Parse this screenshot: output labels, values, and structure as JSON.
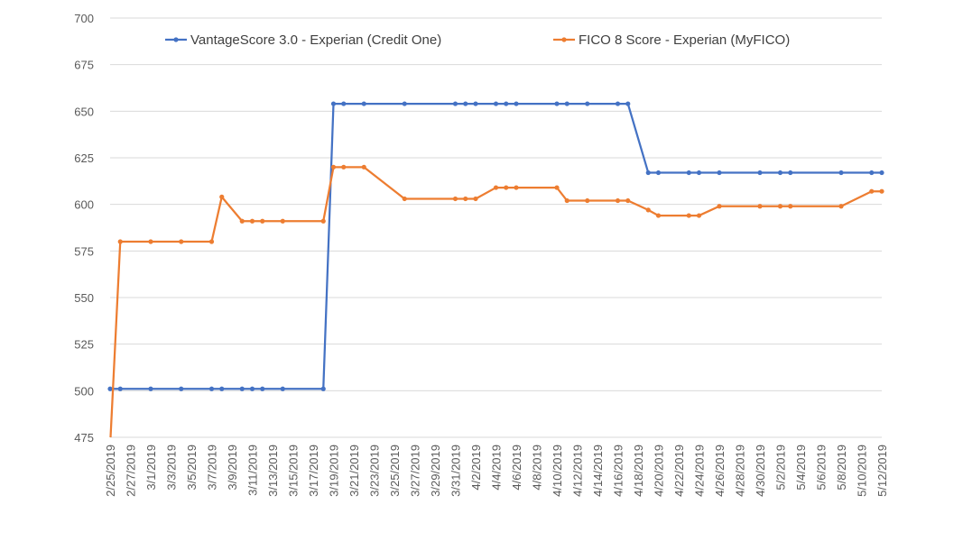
{
  "chart_data": {
    "type": "line",
    "title": "",
    "xlabel": "",
    "ylabel": "",
    "ylim": [
      475,
      700
    ],
    "yticks": [
      475,
      500,
      525,
      550,
      575,
      600,
      625,
      650,
      675,
      700
    ],
    "xlim": [
      "2/25/2019",
      "5/12/2019"
    ],
    "x_tick_interval_days": 2,
    "grid": "horizontal",
    "legend": "top",
    "x": [
      "2/25/2019",
      "2/26/2019",
      "3/1/2019",
      "3/4/2019",
      "3/7/2019",
      "3/8/2019",
      "3/10/2019",
      "3/11/2019",
      "3/12/2019",
      "3/14/2019",
      "3/18/2019",
      "3/19/2019",
      "3/20/2019",
      "3/22/2019",
      "3/26/2019",
      "3/31/2019",
      "4/1/2019",
      "4/2/2019",
      "4/4/2019",
      "4/5/2019",
      "4/6/2019",
      "4/10/2019",
      "4/11/2019",
      "4/13/2019",
      "4/16/2019",
      "4/17/2019",
      "4/19/2019",
      "4/20/2019",
      "4/23/2019",
      "4/24/2019",
      "4/26/2019",
      "4/30/2019",
      "5/2/2019",
      "5/3/2019",
      "5/8/2019",
      "5/11/2019",
      "5/12/2019"
    ],
    "series": [
      {
        "name": "VantageScore 3.0 - Experian (Credit One)",
        "color": "#4472C4",
        "values": [
          501,
          501,
          501,
          501,
          501,
          501,
          501,
          501,
          501,
          501,
          501,
          654,
          654,
          654,
          654,
          654,
          654,
          654,
          654,
          654,
          654,
          654,
          654,
          654,
          654,
          654,
          617,
          617,
          617,
          617,
          617,
          617,
          617,
          617,
          617,
          617,
          617
        ]
      },
      {
        "name": "FICO 8 Score - Experian (MyFICO)",
        "color": "#ED7D31",
        "values": [
          null,
          580,
          580,
          580,
          580,
          604,
          591,
          591,
          591,
          591,
          591,
          620,
          620,
          620,
          603,
          603,
          603,
          603,
          609,
          609,
          609,
          609,
          602,
          602,
          602,
          602,
          597,
          594,
          594,
          594,
          599,
          599,
          599,
          599,
          599,
          607,
          607
        ]
      }
    ]
  }
}
